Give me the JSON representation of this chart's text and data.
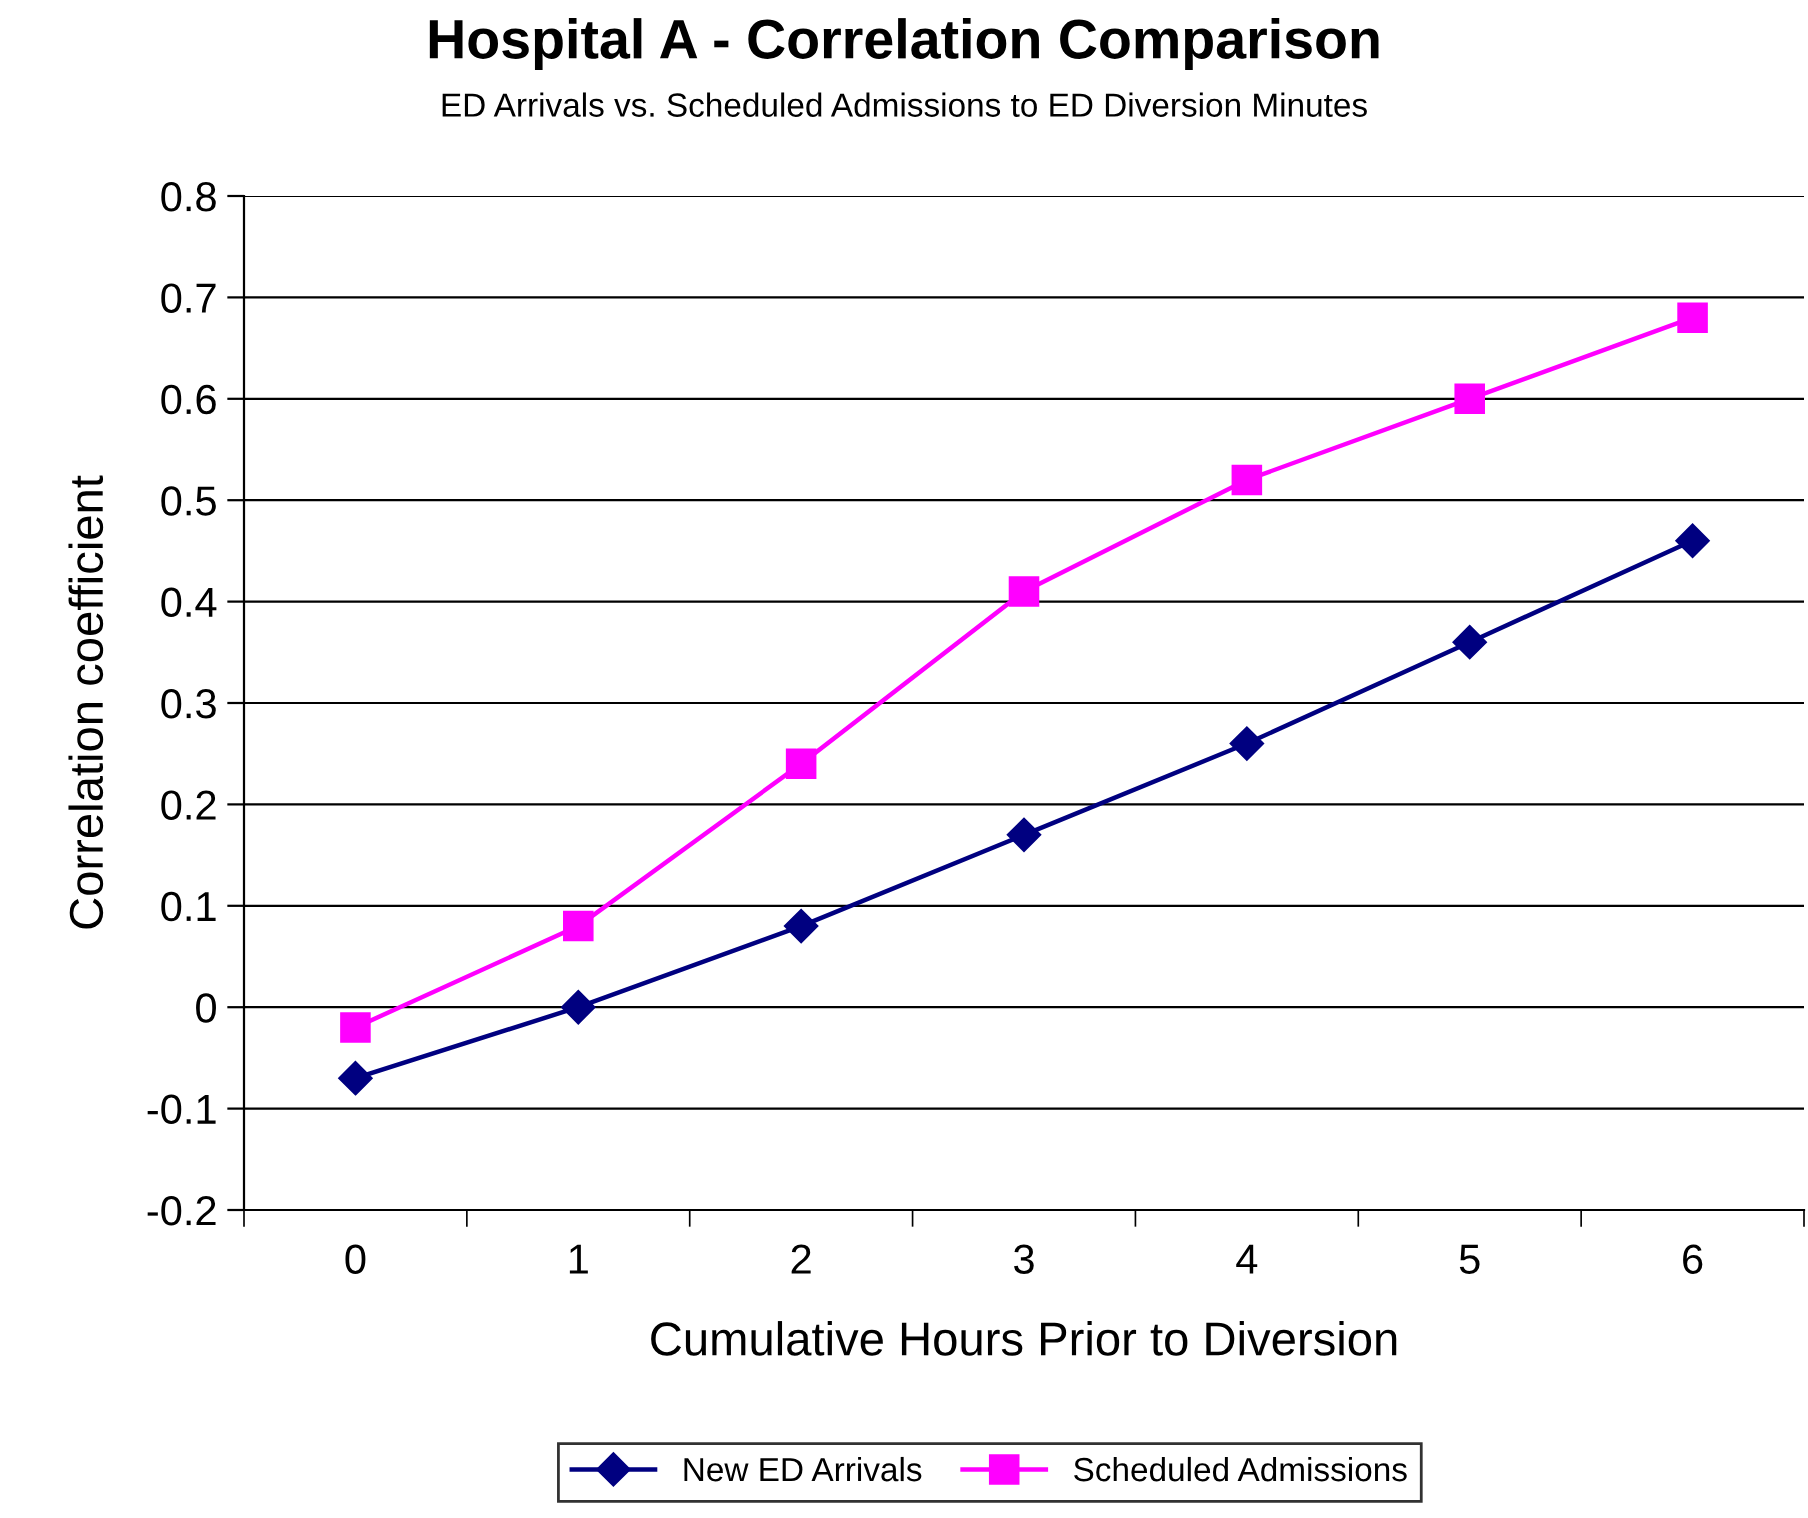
{
  "chart_data": {
    "type": "line",
    "title": "Hospital A - Correlation Comparison",
    "subtitle": "ED Arrivals vs. Scheduled Admissions to ED Diversion Minutes",
    "xlabel": "Cumulative Hours Prior to Diversion",
    "ylabel": "Correlation coefficient",
    "categories": [
      "0",
      "1",
      "2",
      "3",
      "4",
      "5",
      "6"
    ],
    "series": [
      {
        "name": "New ED Arrivals",
        "color": "#000080",
        "marker": "diamond",
        "values": [
          -0.07,
          0.0,
          0.08,
          0.17,
          0.26,
          0.36,
          0.46
        ]
      },
      {
        "name": "Scheduled Admissions",
        "color": "#ff00ff",
        "marker": "square",
        "values": [
          -0.02,
          0.08,
          0.24,
          0.41,
          0.52,
          0.6,
          0.68
        ]
      }
    ],
    "ylim": [
      -0.2,
      0.8
    ],
    "yticks": [
      -0.2,
      -0.1,
      0,
      0.1,
      0.2,
      0.3,
      0.4,
      0.5,
      0.6,
      0.7,
      0.8
    ],
    "grid": "y",
    "legend": "bottom",
    "line_style": "solid"
  }
}
